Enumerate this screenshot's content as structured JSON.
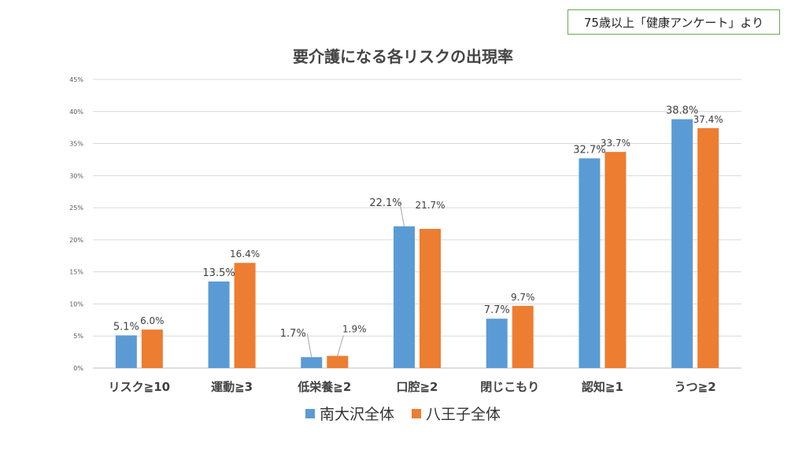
{
  "note": "75歳以上「健康アンケート」より",
  "chart_data": {
    "type": "bar",
    "title": "要介護になる各リスクの出現率",
    "categories": [
      "リスク≧10",
      "運動≧3",
      "低栄養≧2",
      "口腔≧2",
      "閉じこもり",
      "認知≧1",
      "うつ≧2"
    ],
    "series": [
      {
        "name": "南大沢全体",
        "color": "#5b9bd5",
        "values": [
          5.1,
          13.5,
          1.7,
          22.1,
          7.7,
          32.7,
          38.8
        ]
      },
      {
        "name": "八王子全体",
        "color": "#ed7d31",
        "values": [
          6.0,
          16.4,
          1.9,
          21.7,
          9.7,
          33.7,
          37.4
        ]
      }
    ],
    "value_labels": [
      [
        "5.1%",
        "13.5%",
        "1.7%",
        "22.1%",
        "7.7%",
        "32.7%",
        "38.8%"
      ],
      [
        "6.0%",
        "16.4%",
        "1.9%",
        "21.7%",
        "9.7%",
        "33.7%",
        "37.4%"
      ]
    ],
    "yticks": [
      "0%",
      "5%",
      "10%",
      "15%",
      "20%",
      "25%",
      "30%",
      "35%",
      "40%",
      "45%"
    ],
    "ylim": [
      0,
      45
    ],
    "grid": true,
    "legend_position": "bottom"
  }
}
